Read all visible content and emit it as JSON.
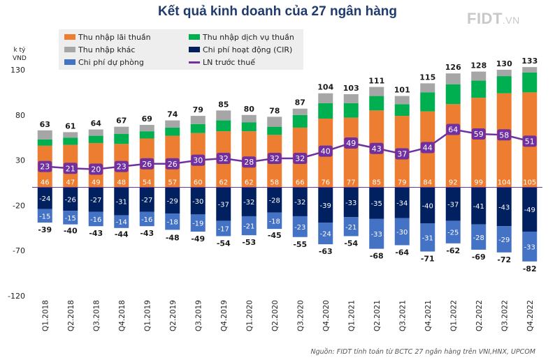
{
  "title": "Kết quả kinh doanh của 27 ngân hàng",
  "logo": {
    "main": "FIDT",
    "suffix": ".VN"
  },
  "y_unit": [
    "k tỷ",
    "VND"
  ],
  "source": "Nguồn: FIDT tính toán từ BCTC 27 ngân hàng trên VNI,HNX, UPCOM",
  "colors": {
    "net_interest": "#ed7d31",
    "service": "#00b050",
    "other": "#a6a6a6",
    "opex": "#002060",
    "provision": "#4472c4",
    "pbt_line": "#7030a0",
    "zero_line": "#7030a0"
  },
  "legend": [
    {
      "label": "Thu nhập lãi thuần",
      "color": "#ed7d31",
      "kind": "box"
    },
    {
      "label": "Thu nhập dịch vụ thuần",
      "color": "#00b050",
      "kind": "box"
    },
    {
      "label": "Thu nhập khác",
      "color": "#a6a6a6",
      "kind": "box"
    },
    {
      "label": "Chi phí hoạt động (CIR)",
      "color": "#002060",
      "kind": "box"
    },
    {
      "label": "Chi phí dự phòng",
      "color": "#4472c4",
      "kind": "box"
    },
    {
      "label": "LN trước thuế",
      "color": "#7030a0",
      "kind": "line"
    }
  ],
  "chart_data": {
    "type": "bar",
    "title": "Kết quả kinh doanh của 27 ngân hàng",
    "ylabel": "k tỷ VND",
    "ylim": [
      -120,
      130
    ],
    "yticks": [
      -120,
      -70,
      -20,
      30,
      80,
      130
    ],
    "categories": [
      "Q1.2018",
      "Q2.2018",
      "Q3.2018",
      "Q4.2018",
      "Q1.2019",
      "Q2.2019",
      "Q3.2019",
      "Q4.2019",
      "Q1.2020",
      "Q2.2020",
      "Q3.2020",
      "Q4.2020",
      "Q1.2021",
      "Q2.2021",
      "Q3.2021",
      "Q4.2021",
      "Q1.2022",
      "Q2.2022",
      "Q3.2022",
      "Q4.2022"
    ],
    "series": [
      {
        "name": "Thu nhập lãi thuần",
        "values": [
          46,
          47,
          49,
          48,
          54,
          57,
          60,
          62,
          62,
          58,
          66,
          76,
          77,
          85,
          79,
          84,
          92,
          99,
          104,
          105
        ]
      },
      {
        "name": "Thu nhập dịch vụ thuần",
        "values": [
          7,
          8,
          8,
          11,
          8,
          9,
          10,
          12,
          10,
          9,
          14,
          17,
          16,
          16,
          13,
          21,
          22,
          19,
          19,
          22
        ]
      },
      {
        "name": "Thu nhập khác",
        "values": [
          10,
          6,
          7,
          8,
          7,
          8,
          9,
          11,
          8,
          11,
          7,
          11,
          10,
          10,
          9,
          10,
          12,
          10,
          7,
          6
        ]
      },
      {
        "name": "Chi phí hoạt động (CIR)",
        "values": [
          -24,
          -26,
          -27,
          -31,
          -27,
          -29,
          -30,
          -37,
          -32,
          -28,
          -32,
          -39,
          -33,
          -35,
          -34,
          -40,
          -37,
          -41,
          -43,
          -49
        ]
      },
      {
        "name": "Chi phí dự phòng",
        "values": [
          -15,
          -15,
          -16,
          -14,
          -16,
          -18,
          -19,
          -17,
          -21,
          -18,
          -23,
          -24,
          -21,
          -33,
          -30,
          -31,
          -25,
          -28,
          -29,
          -33
        ]
      },
      {
        "name": "LN trước thuế",
        "type": "line",
        "values": [
          23,
          21,
          20,
          23,
          26,
          26,
          30,
          32,
          28,
          32,
          32,
          40,
          49,
          43,
          37,
          44,
          64,
          59,
          58,
          51
        ]
      }
    ],
    "total_income": [
      63,
      61,
      64,
      67,
      69,
      74,
      79,
      85,
      80,
      78,
      87,
      104,
      103,
      111,
      101,
      115,
      126,
      128,
      130,
      133
    ],
    "total_expense": [
      -39,
      -40,
      -43,
      -44,
      -43,
      -48,
      -49,
      -54,
      -53,
      -45,
      -55,
      -63,
      -54,
      -68,
      -64,
      -71,
      -62,
      -69,
      -72,
      -82
    ]
  }
}
